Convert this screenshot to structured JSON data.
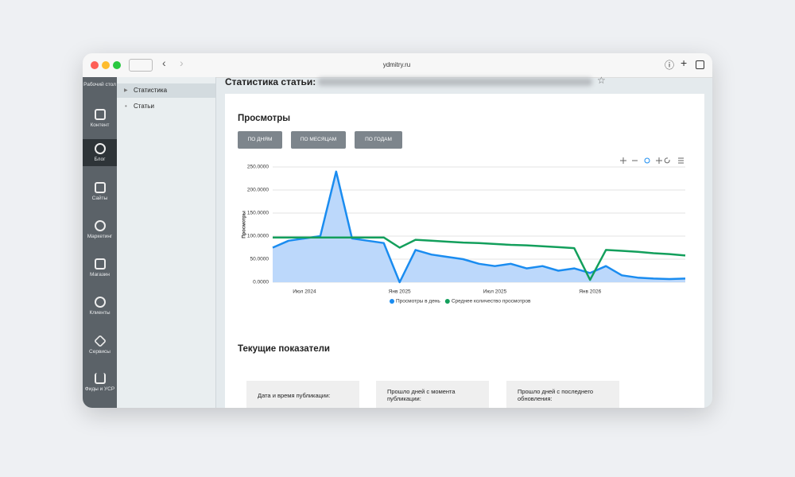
{
  "browser": {
    "url": "ydmitry.ru"
  },
  "sidebar": [
    "Рабочий стол",
    "Контент",
    "Блог",
    "Сайты",
    "Маркетинг",
    "Магазин",
    "Клиенты",
    "Сервисы",
    "Фиды и УСР"
  ],
  "subnav": [
    "Статистика",
    "Статьи"
  ],
  "page_title": "Статистика статьи:",
  "views_section": {
    "heading": "Просмотры",
    "buttons": [
      "ПО ДНЯМ",
      "ПО МЕСЯЦАМ",
      "ПО ГОДАМ"
    ]
  },
  "chart_data": {
    "type": "line",
    "ylabel": "Просмотры",
    "categories": [
      null,
      null,
      "Июл 2024",
      null,
      null,
      null,
      null,
      null,
      "Янв 2025",
      null,
      null,
      null,
      null,
      null,
      "Июл 2025",
      null,
      null,
      null,
      null,
      null,
      "Янв 2026",
      null,
      null,
      null,
      null,
      null,
      null
    ],
    "series": [
      {
        "name": "Просмотры в день",
        "color": "#1a8cf0",
        "fill": "#bcd8fb",
        "values": [
          75000,
          90000,
          95000,
          100000,
          240000,
          95000,
          90000,
          85000,
          0,
          70000,
          60000,
          55000,
          50000,
          40000,
          35000,
          40000,
          30000,
          35000,
          25000,
          30000,
          20000,
          35000,
          15000,
          10000,
          8000,
          7000,
          8000
        ]
      },
      {
        "name": "Среднее количество просмотров",
        "color": "#139f5c",
        "values": [
          97000,
          97000,
          97000,
          97000,
          97000,
          97000,
          97000,
          97000,
          75000,
          92000,
          90000,
          88000,
          86000,
          85000,
          83000,
          81000,
          80000,
          78000,
          76000,
          74000,
          5000,
          70000,
          68000,
          66000,
          63000,
          61000,
          58000
        ]
      }
    ],
    "ylim": [
      0,
      250000
    ],
    "yticks": [
      {
        "value": 0,
        "label": "0.0000"
      },
      {
        "value": 50000,
        "label": "50.0000"
      },
      {
        "value": 100000,
        "label": "100.0000"
      },
      {
        "value": 150000,
        "label": "150.0000"
      },
      {
        "value": 200000,
        "label": "200.0000"
      },
      {
        "value": 250000,
        "label": "250.0000"
      }
    ],
    "grid": true,
    "legend": "bottom"
  },
  "metrics_section": {
    "heading": "Текущие показатели",
    "cards": [
      "Дата и время публикации:",
      "Прошло дней с момента публикации:",
      "Прошло дней с последнего обновления:"
    ]
  }
}
